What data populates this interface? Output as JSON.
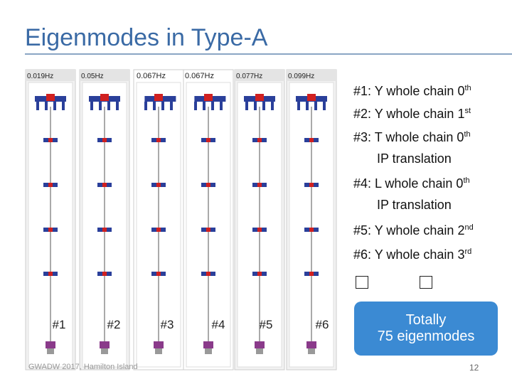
{
  "header": {
    "title": "Eigenmodes in Type-A"
  },
  "frequencies": [
    "0.019Hz",
    "0.05Hz",
    "0.067Hz",
    "0.067Hz",
    "0.077Hz",
    "0.099Hz"
  ],
  "modes": [
    {
      "text": "#1: Y whole chain 0",
      "sup": "th"
    },
    {
      "text": "#2: Y whole chain 1",
      "sup": "st"
    },
    {
      "text": "#3: T whole chain 0",
      "sup": "th",
      "line2": "IP translation"
    },
    {
      "text": "#4: L whole chain 0",
      "sup": "th",
      "line2": "IP translation"
    },
    {
      "text": "#5: Y whole chain 2",
      "sup": "nd"
    },
    {
      "text": "#6: Y whole chain 3",
      "sup": "rd"
    }
  ],
  "mode_labels": [
    "#1",
    "#2",
    "#3",
    "#4",
    "#5",
    "#6"
  ],
  "callout": {
    "lines": [
      "Totally",
      "75 eigenmodes"
    ]
  },
  "footer": {
    "text": "GWADW 2017, Hamilton Island",
    "page": "12"
  }
}
